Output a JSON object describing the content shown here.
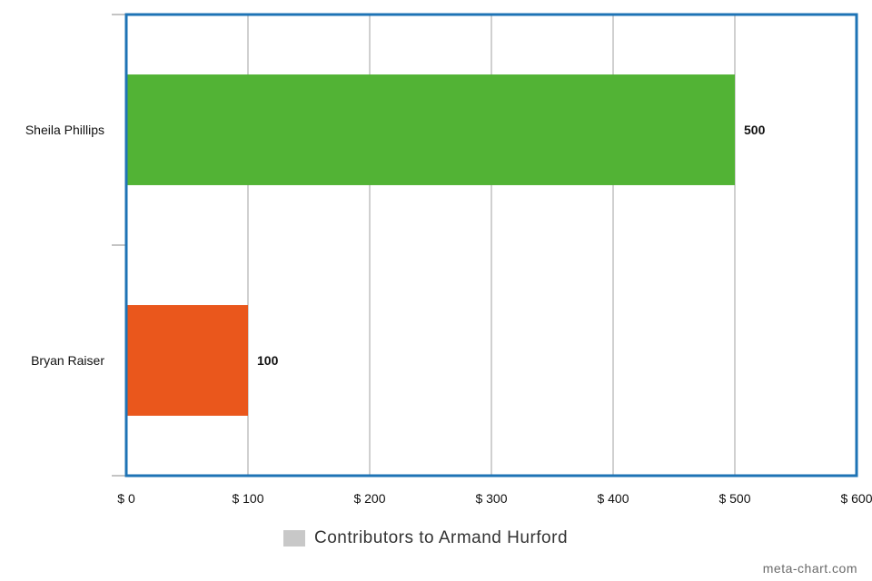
{
  "chart_data": {
    "type": "bar",
    "orientation": "horizontal",
    "categories": [
      "Sheila Phillips",
      "Bryan Raiser"
    ],
    "values": [
      500,
      100
    ],
    "data_labels": [
      "500",
      "100"
    ],
    "bar_colors": [
      "#52b335",
      "#ea571c"
    ],
    "xlim": [
      0,
      600
    ],
    "x_ticks": [
      0,
      100,
      200,
      300,
      400,
      500,
      600
    ],
    "x_tick_labels": [
      "$ 0",
      "$ 100",
      "$ 200",
      "$ 300",
      "$ 400",
      "$ 500",
      "$ 600"
    ],
    "grid": "vertical",
    "frame_color": "#1e73b5",
    "legend": {
      "position": "bottom-center",
      "entries": [
        {
          "label": "Contributors to Armand Hurford",
          "color": "#c8c8c8"
        }
      ]
    }
  },
  "credit": "meta-chart.com"
}
